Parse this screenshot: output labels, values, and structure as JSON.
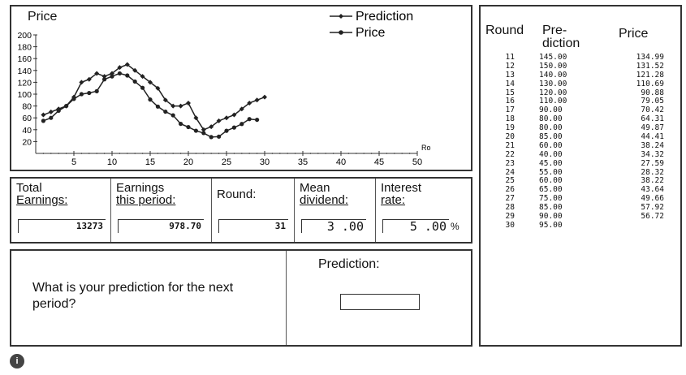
{
  "chart": {
    "title": "Price",
    "legend": [
      "Prediction",
      "Price"
    ]
  },
  "chart_data": {
    "type": "line",
    "x": [
      1,
      2,
      3,
      4,
      5,
      6,
      7,
      8,
      9,
      10,
      11,
      12,
      13,
      14,
      15,
      16,
      17,
      18,
      19,
      20,
      21,
      22,
      23,
      24,
      25,
      26,
      27,
      28,
      29,
      30
    ],
    "series": [
      {
        "name": "Prediction",
        "x": [
          1,
          2,
          3,
          4,
          5,
          6,
          7,
          8,
          9,
          10,
          11,
          12,
          13,
          14,
          15,
          16,
          17,
          18,
          19,
          20,
          21,
          22,
          23,
          24,
          25,
          26,
          27,
          28,
          29,
          30
        ],
        "values": [
          65,
          70,
          75,
          80,
          95,
          120,
          125,
          135,
          130,
          135,
          145,
          150,
          140,
          130,
          120,
          110,
          90,
          80,
          80,
          85,
          60,
          40,
          45,
          55,
          60,
          65,
          75,
          85,
          90,
          95
        ]
      },
      {
        "name": "Price",
        "x": [
          1,
          2,
          3,
          4,
          5,
          6,
          7,
          8,
          9,
          10,
          11,
          12,
          13,
          14,
          15,
          16,
          17,
          18,
          19,
          20,
          21,
          22,
          23,
          24,
          25,
          26,
          27,
          28,
          29
        ],
        "values": [
          55,
          60,
          72,
          80,
          92,
          100,
          102,
          105,
          125,
          130,
          134.99,
          131.52,
          121.28,
          110.69,
          90.88,
          79.05,
          70.42,
          64.31,
          49.87,
          44.41,
          38.24,
          34.32,
          27.59,
          28.32,
          38.22,
          43.64,
          49.66,
          57.92,
          56.72
        ]
      }
    ],
    "xlabel": "Ro",
    "ylabel": "",
    "xlim": [
      0,
      50
    ],
    "ylim": [
      0,
      200
    ],
    "xticks": [
      5,
      10,
      15,
      20,
      25,
      30,
      35,
      40,
      45,
      50
    ],
    "yticks": [
      20,
      40,
      60,
      80,
      100,
      120,
      140,
      160,
      180,
      200
    ],
    "legend_position": "top-right"
  },
  "info": {
    "total_earnings_label1": "Total",
    "total_earnings_label2": "Earnings:",
    "total_earnings_value": "13273",
    "earnings_period_label1": "Earnings",
    "earnings_period_label2": "this period:",
    "earnings_period_value": "978.70",
    "round_label": "Round:",
    "round_value": "31",
    "mean_dividend_label1": "Mean",
    "mean_dividend_label2": "dividend:",
    "mean_dividend_value": "3 .00",
    "interest_label1": "Interest",
    "interest_label2": "rate:",
    "interest_value": "5 .00",
    "interest_suffix": "%"
  },
  "question": {
    "text": "What is your prediction for the next period?",
    "prediction_label": "Prediction:",
    "prediction_value": ""
  },
  "table": {
    "header_round": "Round",
    "header_prediction1": "Pre-",
    "header_prediction2": "diction",
    "header_price": "Price",
    "rows": [
      {
        "round": "11",
        "prediction": "145.00",
        "price": "134.99"
      },
      {
        "round": "12",
        "prediction": "150.00",
        "price": "131.52"
      },
      {
        "round": "13",
        "prediction": "140.00",
        "price": "121.28"
      },
      {
        "round": "14",
        "prediction": "130.00",
        "price": "110.69"
      },
      {
        "round": "15",
        "prediction": "120.00",
        "price": "90.88"
      },
      {
        "round": "16",
        "prediction": "110.00",
        "price": "79.05"
      },
      {
        "round": "17",
        "prediction": "90.00",
        "price": "70.42"
      },
      {
        "round": "18",
        "prediction": "80.00",
        "price": "64.31"
      },
      {
        "round": "19",
        "prediction": "80.00",
        "price": "49.87"
      },
      {
        "round": "20",
        "prediction": "85.00",
        "price": "44.41"
      },
      {
        "round": "21",
        "prediction": "60.00",
        "price": "38.24"
      },
      {
        "round": "22",
        "prediction": "40.00",
        "price": "34.32"
      },
      {
        "round": "23",
        "prediction": "45.00",
        "price": "27.59"
      },
      {
        "round": "24",
        "prediction": "55.00",
        "price": "28.32"
      },
      {
        "round": "25",
        "prediction": "60.00",
        "price": "38.22"
      },
      {
        "round": "26",
        "prediction": "65.00",
        "price": "43.64"
      },
      {
        "round": "27",
        "prediction": "75.00",
        "price": "49.66"
      },
      {
        "round": "28",
        "prediction": "85.00",
        "price": "57.92"
      },
      {
        "round": "29",
        "prediction": "90.00",
        "price": "56.72"
      },
      {
        "round": "30",
        "prediction": "95.00",
        "price": ""
      }
    ]
  },
  "help": {
    "icon": "help-icon",
    "glyph": "i"
  }
}
